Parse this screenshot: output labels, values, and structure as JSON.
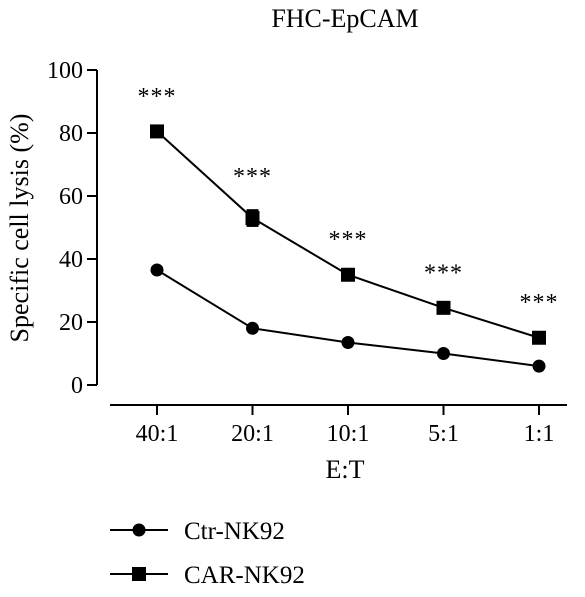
{
  "chart_data": {
    "type": "line",
    "title": "FHC-EpCAM",
    "xlabel": "E:T",
    "ylabel": "Specific cell lysis (%)",
    "categories": [
      "40:1",
      "20:1",
      "10:1",
      "5:1",
      "1:1"
    ],
    "ylim": [
      0,
      100
    ],
    "yticks": [
      0,
      20,
      40,
      60,
      80,
      100
    ],
    "grid": false,
    "legend": "bottom-left",
    "series": [
      {
        "name": "Ctr-NK92",
        "marker": "circle",
        "values": [
          36.5,
          18,
          13.5,
          10,
          6
        ],
        "errors": [
          0,
          0,
          0,
          0,
          0
        ]
      },
      {
        "name": "CAR-NK92",
        "marker": "square",
        "values": [
          80.5,
          53,
          35,
          24.5,
          15
        ],
        "errors": [
          0.5,
          2.5,
          0.5,
          0.5,
          0.5
        ]
      }
    ],
    "annotations": [
      "***",
      "***",
      "***",
      "***",
      "***"
    ],
    "colors": {
      "line": "#000000",
      "background": "#ffffff"
    }
  }
}
